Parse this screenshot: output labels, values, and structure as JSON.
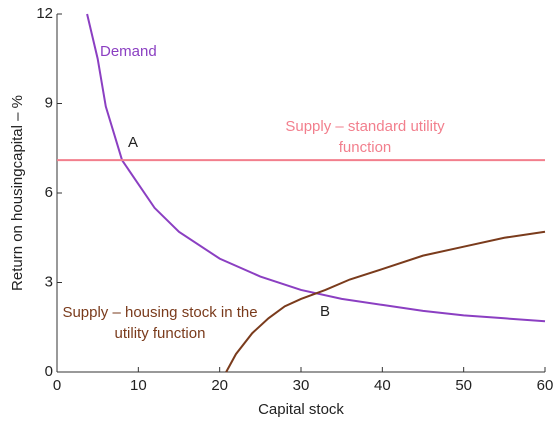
{
  "chart_data": {
    "type": "line",
    "xlabel": "Capital stock",
    "ylabel": "Return on housingcapital – %",
    "xlim": [
      0,
      60
    ],
    "ylim": [
      0,
      12
    ],
    "xticks": [
      0,
      10,
      20,
      30,
      40,
      50,
      60
    ],
    "yticks": [
      0,
      3,
      6,
      9,
      12
    ],
    "series": [
      {
        "name": "Demand",
        "color": "#8b3fc2",
        "x": [
          3.7,
          5,
          6,
          7,
          8,
          10,
          12,
          15,
          20,
          25,
          30,
          35,
          40,
          45,
          50,
          55,
          60
        ],
        "values": [
          12,
          10.5,
          8.9,
          8.0,
          7.1,
          6.3,
          5.5,
          4.7,
          3.8,
          3.2,
          2.75,
          2.45,
          2.25,
          2.05,
          1.9,
          1.8,
          1.7
        ]
      },
      {
        "name": "Supply – standard utility function",
        "color": "#f27f8d",
        "x": [
          0,
          60
        ],
        "values": [
          7.1,
          7.1
        ]
      },
      {
        "name": "Supply – housing stock in the utility function",
        "color": "#7a3b1c",
        "x": [
          20.8,
          22,
          24,
          26,
          28,
          30,
          33,
          36,
          40,
          45,
          50,
          55,
          60
        ],
        "values": [
          0,
          0.6,
          1.3,
          1.8,
          2.2,
          2.45,
          2.75,
          3.1,
          3.45,
          3.9,
          4.2,
          4.5,
          4.7
        ]
      }
    ],
    "annotations": [
      "A",
      "B"
    ]
  }
}
